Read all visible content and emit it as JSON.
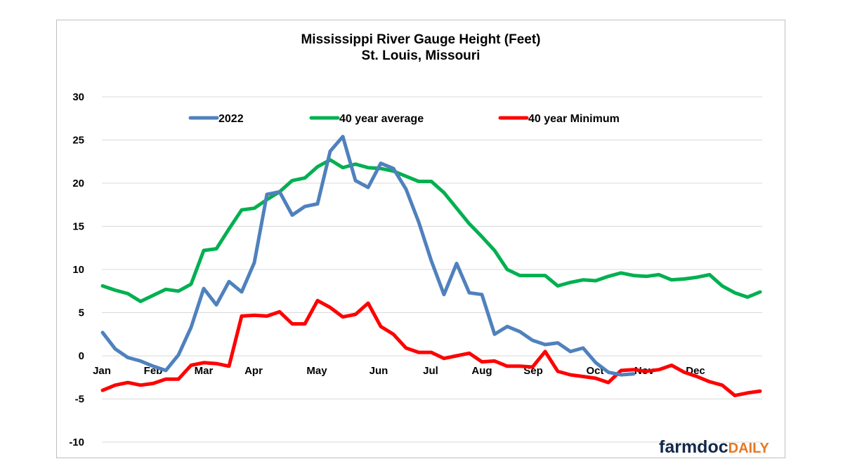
{
  "chart_data": {
    "type": "line",
    "title": "Mississippi River Gauge Height (Feet)",
    "subtitle": "St. Louis, Missouri",
    "xlabel": "",
    "ylabel": "",
    "ylim": [
      -10,
      30
    ],
    "yticks": [
      "30",
      "25",
      "20",
      "15",
      "10",
      "5",
      "0",
      "-5",
      "-10"
    ],
    "ytick_values": [
      30,
      25,
      20,
      15,
      10,
      5,
      0,
      -5,
      -10
    ],
    "months": [
      "Jan",
      "Feb",
      "Mar",
      "Apr",
      "May",
      "Jun",
      "Jul",
      "Aug",
      "Sep",
      "Oct",
      "Nov",
      "Dec"
    ],
    "grid": "horizontal",
    "legend_position": "top",
    "point_count": 53,
    "series": [
      {
        "name": "2022",
        "color": "#4f81bd",
        "values": [
          2.7,
          0.8,
          -0.2,
          -0.6,
          -1.2,
          -1.7,
          0.1,
          3.3,
          7.8,
          5.9,
          8.6,
          7.4,
          10.8,
          18.7,
          19.0,
          16.3,
          17.3,
          17.6,
          23.7,
          25.4,
          20.3,
          19.5,
          22.3,
          21.7,
          19.3,
          15.5,
          11.0,
          7.1,
          10.7,
          7.3,
          7.1,
          2.5,
          3.4,
          2.8,
          1.8,
          1.3,
          1.5,
          0.5,
          0.9,
          -0.8,
          -1.9,
          -2.2,
          -2.1
        ]
      },
      {
        "name": "40 year average",
        "color": "#00b050",
        "values": [
          8.1,
          7.6,
          7.2,
          6.3,
          7.0,
          7.7,
          7.5,
          8.3,
          12.2,
          12.4,
          14.7,
          16.9,
          17.1,
          18.1,
          19.0,
          20.3,
          20.6,
          21.9,
          22.7,
          21.8,
          22.2,
          21.8,
          21.7,
          21.4,
          20.8,
          20.2,
          20.2,
          18.9,
          17.1,
          15.3,
          13.8,
          12.2,
          10.0,
          9.3,
          9.3,
          9.3,
          8.1,
          8.5,
          8.8,
          8.7,
          9.2,
          9.6,
          9.3,
          9.2,
          9.4,
          8.8,
          8.9,
          9.1,
          9.4,
          8.1,
          7.3,
          6.8,
          7.4
        ]
      },
      {
        "name": "40 year Minimum",
        "color": "#ff0000",
        "values": [
          -4.0,
          -3.4,
          -3.1,
          -3.4,
          -3.2,
          -2.7,
          -2.7,
          -1.1,
          -0.8,
          -0.9,
          -1.2,
          4.6,
          4.7,
          4.6,
          5.1,
          3.7,
          3.7,
          6.4,
          5.6,
          4.5,
          4.8,
          6.1,
          3.4,
          2.5,
          0.9,
          0.4,
          0.4,
          -0.3,
          0.0,
          0.3,
          -0.7,
          -0.6,
          -1.2,
          -1.2,
          -1.3,
          0.5,
          -1.8,
          -2.2,
          -2.4,
          -2.6,
          -3.1,
          -1.7,
          -1.6,
          -1.8,
          -1.6,
          -1.1,
          -1.9,
          -2.4,
          -3.0,
          -3.4,
          -4.6,
          -4.3,
          -4.1
        ]
      }
    ]
  },
  "logo": {
    "text_main": "farmdoc",
    "text_accent": "DAILY"
  },
  "colors": {
    "grid": "#d9d9d9",
    "frame_border": "#bfbfbf"
  }
}
